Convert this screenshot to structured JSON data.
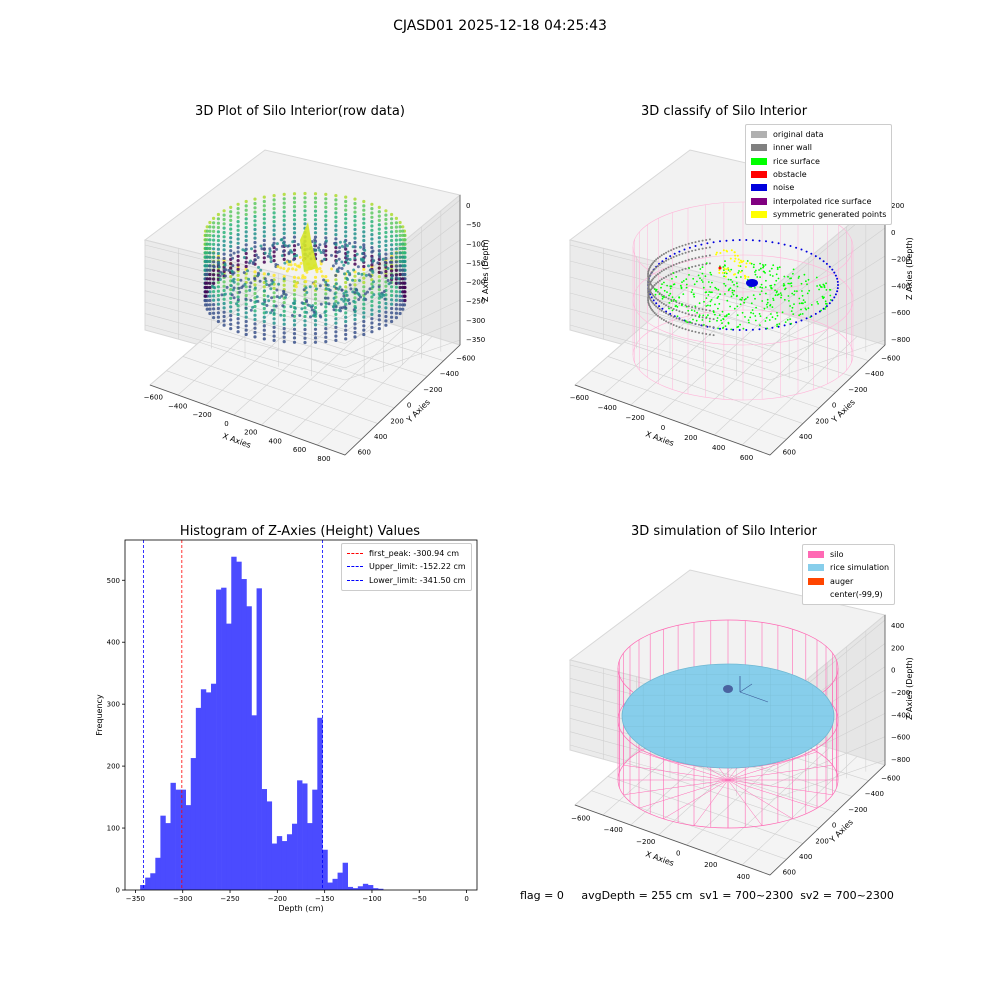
{
  "suptitle": "CJASD01 2025-12-18 04:25:43",
  "status_text": "flag = 0     avgDepth = 255 cm  sv1 = 700~2300  sv2 = 700~2300",
  "colors": {
    "hist_bar": "#4b4bff",
    "first_peak": "#ff0000",
    "limits": "#0000ff",
    "silo": "#ff69b4",
    "rice_simulation": "#87ceeb",
    "auger": "#ff4500",
    "original_data": "#b0b0b0",
    "inner_wall": "#808080",
    "rice_surface": "#00ff00",
    "obstacle": "#ff0000",
    "noise": "#0000dd",
    "interpolated": "#800080",
    "symmetric": "#ffff00"
  },
  "chart_data": [
    {
      "type": "scatter3d",
      "title": "3D Plot of Silo Interior(row data)",
      "xlabel": "X Axies",
      "ylabel": "Y Axies",
      "zlabel": "Z Axies (Depth)",
      "xticks": [
        "−600",
        "−400",
        "−200",
        "0",
        "200",
        "400",
        "600",
        "800"
      ],
      "yticks": [
        "−600",
        "−400",
        "−200",
        "0",
        "200",
        "400",
        "600"
      ],
      "zticks": [
        "0",
        "−50",
        "−100",
        "−150",
        "−200",
        "−250",
        "−300",
        "−350"
      ]
    },
    {
      "type": "scatter3d",
      "title": "3D classify of Silo Interior",
      "xlabel": "X Axies",
      "ylabel": "Y Axies",
      "zlabel": "Z Axies (Depth)",
      "xticks": [
        "−600",
        "−400",
        "−200",
        "0",
        "200",
        "400",
        "600"
      ],
      "yticks": [
        "−600",
        "−400",
        "−200",
        "0",
        "200",
        "400",
        "600"
      ],
      "zticks": [
        "200",
        "0",
        "−200",
        "−400",
        "−600",
        "−800"
      ],
      "legend": [
        "original data",
        "inner wall",
        "rice surface",
        "obstacle",
        "noise",
        "interpolated rice surface",
        "symmetric generated points"
      ]
    },
    {
      "type": "bar",
      "title": "Histogram of Z-Axies (Height) Values",
      "xlabel": "Depth (cm)",
      "ylabel": "Frequency",
      "xlim": [
        -361,
        11
      ],
      "ylim": [
        0,
        565
      ],
      "xticks": [
        -350,
        -300,
        -250,
        -200,
        -150,
        -100,
        -50,
        0
      ],
      "yticks": [
        0,
        100,
        200,
        300,
        400,
        500
      ],
      "bin_start": -345,
      "bin_width": 5.35,
      "values": [
        8,
        20,
        27,
        52,
        120,
        108,
        173,
        162,
        162,
        137,
        213,
        294,
        324,
        319,
        333,
        485,
        488,
        430,
        538,
        530,
        502,
        458,
        282,
        487,
        163,
        143,
        75,
        87,
        79,
        90,
        107,
        177,
        172,
        108,
        162,
        278,
        65,
        12,
        18,
        28,
        44,
        5,
        3,
        6,
        10,
        8,
        3,
        2
      ],
      "lines": [
        {
          "name": "first_peak: -300.94 cm",
          "x": -300.94
        },
        {
          "name": "Upper_limit: -152.22 cm",
          "x": -152.22
        },
        {
          "name": "Lower_limit: -341.50 cm",
          "x": -341.5
        }
      ]
    },
    {
      "type": "surface3d",
      "title": "3D simulation of Silo Interior",
      "xlabel": "X Axies",
      "ylabel": "Y Axies",
      "zlabel": "Z Axies (Depth)",
      "xticks": [
        "−600",
        "−400",
        "−200",
        "0",
        "200",
        "400"
      ],
      "yticks": [
        "−600",
        "−400",
        "−200",
        "0",
        "200",
        "400",
        "600"
      ],
      "zticks": [
        "400",
        "200",
        "0",
        "−200",
        "−400",
        "−600",
        "−800"
      ],
      "legend": [
        "silo",
        "rice simulation",
        "auger",
        "center(-99,9)"
      ]
    }
  ]
}
